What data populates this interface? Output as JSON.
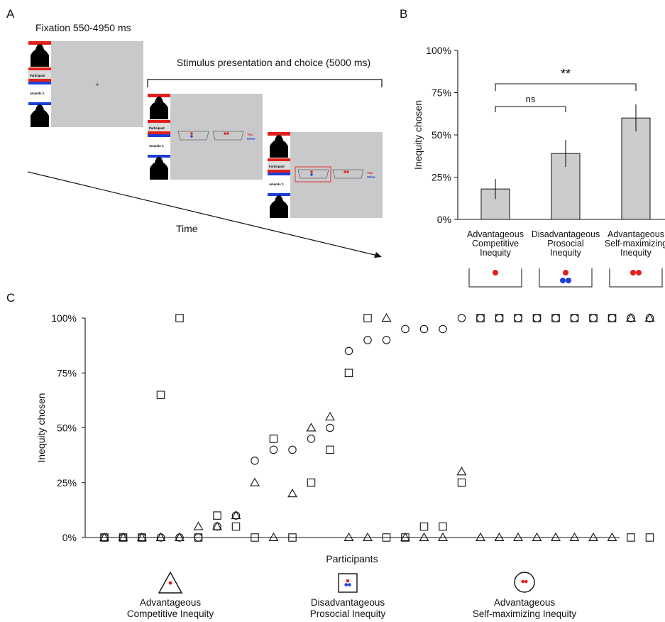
{
  "panel_a": {
    "letter": "A",
    "fixation_label": "Fixation 550-4950 ms",
    "stimulus_label": "Stimulus presentation and choice (5000 ms)",
    "time_label": "Time",
    "participant_label": "Participant",
    "partner_label": "Amanda Y.",
    "you_label": "You",
    "other_label": "Other",
    "colors": {
      "self": "#e0201b",
      "other": "#1d3fd6",
      "screen": "#c9c9cb"
    }
  },
  "chart_data": [
    {
      "type": "bar",
      "panel": "B",
      "letter": "B",
      "categories": [
        [
          "Advantageous",
          "Competitive",
          "Inequity"
        ],
        [
          "Disadvantageous",
          "Prosocial",
          "Inequity"
        ],
        [
          "Advantageous",
          "Self-maximizing",
          "Inequity"
        ]
      ],
      "values": [
        18,
        39,
        60
      ],
      "errors": [
        6,
        8,
        8
      ],
      "ylabel": "Inequity chosen",
      "ylim": [
        0,
        100
      ],
      "yticks": [
        0,
        25,
        50,
        75,
        100
      ],
      "ytick_labels": [
        "0%",
        "25%",
        "50%",
        "75%",
        "100%"
      ],
      "significance": [
        {
          "from": 0,
          "to": 1,
          "label": "ns"
        },
        {
          "from": 0,
          "to": 2,
          "label": "**"
        }
      ],
      "bar_color": "#cccccc",
      "icons": [
        {
          "self": 1,
          "other": 0
        },
        {
          "self": 1,
          "other": 2
        },
        {
          "self": 2,
          "other": 0
        }
      ]
    },
    {
      "type": "scatter",
      "panel": "C",
      "letter": "C",
      "xlabel": "Participants",
      "ylabel": "Inequity chosen",
      "ylim": [
        0,
        100
      ],
      "yticks": [
        0,
        25,
        50,
        75,
        100
      ],
      "ytick_labels": [
        "0%",
        "25%",
        "50%",
        "75%",
        "100%"
      ],
      "x": [
        1,
        2,
        3,
        4,
        5,
        6,
        7,
        8,
        9,
        10,
        11,
        12,
        13,
        14,
        15,
        16,
        17,
        18,
        19,
        20,
        21,
        22,
        23,
        24,
        25,
        26,
        27,
        28,
        29,
        30
      ],
      "series": [
        {
          "marker": "triangle",
          "values": [
            0,
            0,
            0,
            0,
            0,
            5,
            5,
            10,
            25,
            0,
            20,
            50,
            55,
            0,
            0,
            100,
            0,
            0,
            0,
            30,
            0,
            0,
            0,
            0,
            0,
            0,
            0,
            0,
            100,
            100
          ]
        },
        {
          "marker": "square",
          "values": [
            0,
            0,
            0,
            65,
            100,
            0,
            10,
            5,
            0,
            45,
            0,
            25,
            40,
            75,
            100,
            0,
            0,
            5,
            5,
            25,
            100,
            100,
            100,
            100,
            100,
            100,
            100,
            100,
            0,
            0
          ]
        },
        {
          "marker": "circle",
          "values": [
            0,
            0,
            0,
            0,
            0,
            0,
            5,
            10,
            35,
            40,
            40,
            45,
            50,
            85,
            90,
            90,
            95,
            95,
            95,
            100,
            100,
            100,
            100,
            100,
            100,
            100,
            100,
            100,
            100,
            100
          ]
        }
      ],
      "legend": [
        {
          "marker": "triangle",
          "label": [
            "Advantageous",
            "Competitive Inequity"
          ]
        },
        {
          "marker": "square",
          "label": [
            "Disadvantageous",
            "Prosocial Inequity"
          ]
        },
        {
          "marker": "circle",
          "label": [
            "Advantageous",
            "Self-maximizing Inequity"
          ]
        }
      ]
    }
  ]
}
